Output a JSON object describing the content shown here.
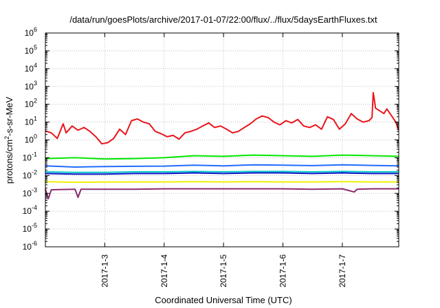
{
  "chart_data": {
    "type": "line",
    "title": "/data/run/goesPlots/archive/2017-01-07/22:00/flux/../flux/5daysEarthFluxes.txt",
    "xlabel": "Coordinated Universal Time (UTC)",
    "ylabel": "protons/cm²-s-sr-MeV",
    "yscale": "log",
    "ylim": [
      1e-06,
      1000000.0
    ],
    "xlim": [
      2.0,
      7.95
    ],
    "x_ticks": [
      {
        "x": 3,
        "label": "2017-1-3"
      },
      {
        "x": 4,
        "label": "2017-1-4"
      },
      {
        "x": 5,
        "label": "2017-1-5"
      },
      {
        "x": 6,
        "label": "2017-1-6"
      },
      {
        "x": 7,
        "label": "2017-1-7"
      }
    ],
    "y_ticks": [
      {
        "exp": -6,
        "label": "10",
        "sup": "-6"
      },
      {
        "exp": -5,
        "label": "10",
        "sup": "-5"
      },
      {
        "exp": -4,
        "label": "10",
        "sup": "-4"
      },
      {
        "exp": -3,
        "label": "10",
        "sup": "-3"
      },
      {
        "exp": -2,
        "label": "10",
        "sup": "-2"
      },
      {
        "exp": -1,
        "label": "10",
        "sup": "-1"
      },
      {
        "exp": 0,
        "label": "10",
        "sup": "0"
      },
      {
        "exp": 1,
        "label": "10",
        "sup": "1"
      },
      {
        "exp": 2,
        "label": "10",
        "sup": "2"
      },
      {
        "exp": 3,
        "label": "10",
        "sup": "3"
      },
      {
        "exp": 4,
        "label": "10",
        "sup": "4"
      },
      {
        "exp": 5,
        "label": "10",
        "sup": "5"
      },
      {
        "exp": 6,
        "label": "10",
        "sup": "6"
      }
    ],
    "grid": true,
    "legend": "none",
    "x_units": "day of January 2017",
    "series": [
      {
        "color": "#e8151b",
        "points": [
          [
            2.0,
            3.2
          ],
          [
            2.1,
            2.5
          ],
          [
            2.2,
            1.2
          ],
          [
            2.3,
            8
          ],
          [
            2.35,
            2.5
          ],
          [
            2.45,
            6
          ],
          [
            2.55,
            3.5
          ],
          [
            2.65,
            5
          ],
          [
            2.75,
            3
          ],
          [
            2.85,
            1.5
          ],
          [
            2.95,
            0.6
          ],
          [
            3.05,
            0.7
          ],
          [
            3.15,
            1.2
          ],
          [
            3.25,
            4
          ],
          [
            3.35,
            2
          ],
          [
            3.45,
            12
          ],
          [
            3.55,
            15
          ],
          [
            3.65,
            10
          ],
          [
            3.75,
            8
          ],
          [
            3.85,
            3
          ],
          [
            3.95,
            2.2
          ],
          [
            4.05,
            1.5
          ],
          [
            4.15,
            1.8
          ],
          [
            4.25,
            1.1
          ],
          [
            4.35,
            2.5
          ],
          [
            4.45,
            3
          ],
          [
            4.55,
            4
          ],
          [
            4.65,
            6
          ],
          [
            4.75,
            9
          ],
          [
            4.85,
            5
          ],
          [
            4.95,
            6
          ],
          [
            5.05,
            4
          ],
          [
            5.15,
            2.5
          ],
          [
            5.25,
            3
          ],
          [
            5.35,
            5
          ],
          [
            5.45,
            8
          ],
          [
            5.55,
            15
          ],
          [
            5.65,
            22
          ],
          [
            5.75,
            18
          ],
          [
            5.85,
            10
          ],
          [
            5.95,
            7
          ],
          [
            6.05,
            12
          ],
          [
            6.15,
            9
          ],
          [
            6.25,
            14
          ],
          [
            6.35,
            6
          ],
          [
            6.45,
            5
          ],
          [
            6.55,
            7
          ],
          [
            6.65,
            4
          ],
          [
            6.75,
            20
          ],
          [
            6.85,
            14
          ],
          [
            6.95,
            4
          ],
          [
            7.05,
            8
          ],
          [
            7.15,
            30
          ],
          [
            7.25,
            15
          ],
          [
            7.35,
            10
          ],
          [
            7.45,
            12
          ],
          [
            7.5,
            18
          ],
          [
            7.52,
            450
          ],
          [
            7.56,
            60
          ],
          [
            7.62,
            45
          ],
          [
            7.7,
            30
          ],
          [
            7.75,
            55
          ],
          [
            7.82,
            25
          ],
          [
            7.9,
            10
          ],
          [
            7.95,
            3.5
          ]
        ]
      },
      {
        "color": "#00e800",
        "points": [
          [
            2.0,
            0.09
          ],
          [
            2.5,
            0.1
          ],
          [
            3.0,
            0.085
          ],
          [
            3.5,
            0.09
          ],
          [
            4.0,
            0.1
          ],
          [
            4.5,
            0.13
          ],
          [
            5.0,
            0.12
          ],
          [
            5.5,
            0.14
          ],
          [
            6.0,
            0.13
          ],
          [
            6.5,
            0.12
          ],
          [
            7.0,
            0.14
          ],
          [
            7.5,
            0.13
          ],
          [
            7.95,
            0.12
          ]
        ]
      },
      {
        "color": "#1f6bff",
        "points": [
          [
            2.0,
            0.035
          ],
          [
            2.5,
            0.03
          ],
          [
            3.0,
            0.032
          ],
          [
            3.5,
            0.033
          ],
          [
            4.0,
            0.034
          ],
          [
            4.5,
            0.038
          ],
          [
            5.0,
            0.035
          ],
          [
            5.5,
            0.04
          ],
          [
            6.0,
            0.038
          ],
          [
            6.5,
            0.036
          ],
          [
            7.0,
            0.04
          ],
          [
            7.5,
            0.037
          ],
          [
            7.95,
            0.035
          ]
        ]
      },
      {
        "color": "#00c8c8",
        "points": [
          [
            2.0,
            0.016
          ],
          [
            2.5,
            0.015
          ],
          [
            3.0,
            0.015
          ],
          [
            3.5,
            0.016
          ],
          [
            4.0,
            0.016
          ],
          [
            4.5,
            0.017
          ],
          [
            5.0,
            0.016
          ],
          [
            5.5,
            0.017
          ],
          [
            6.0,
            0.017
          ],
          [
            6.5,
            0.016
          ],
          [
            7.0,
            0.017
          ],
          [
            7.5,
            0.016
          ],
          [
            7.95,
            0.016
          ]
        ]
      },
      {
        "color": "#1010c8",
        "points": [
          [
            2.0,
            0.013
          ],
          [
            2.5,
            0.012
          ],
          [
            3.0,
            0.012
          ],
          [
            3.5,
            0.013
          ],
          [
            4.0,
            0.013
          ],
          [
            4.5,
            0.014
          ],
          [
            5.0,
            0.013
          ],
          [
            5.5,
            0.014
          ],
          [
            6.0,
            0.014
          ],
          [
            6.5,
            0.013
          ],
          [
            7.0,
            0.014
          ],
          [
            7.5,
            0.013
          ],
          [
            7.95,
            0.013
          ]
        ]
      },
      {
        "color": "#f0f000",
        "points": [
          [
            2.0,
            0.0045
          ],
          [
            2.5,
            0.0042
          ],
          [
            3.0,
            0.0043
          ],
          [
            3.5,
            0.0044
          ],
          [
            4.0,
            0.0044
          ],
          [
            4.5,
            0.0045
          ],
          [
            5.0,
            0.0044
          ],
          [
            5.5,
            0.0045
          ],
          [
            6.0,
            0.0044
          ],
          [
            6.5,
            0.0044
          ],
          [
            7.0,
            0.0045
          ],
          [
            7.5,
            0.0044
          ],
          [
            7.95,
            0.0044
          ]
        ]
      },
      {
        "color": "#8b2a6e",
        "points": [
          [
            2.0,
            0.0018
          ],
          [
            2.05,
            0.0005
          ],
          [
            2.1,
            0.0016
          ],
          [
            2.5,
            0.0017
          ],
          [
            2.55,
            0.0006
          ],
          [
            2.6,
            0.0017
          ],
          [
            3.0,
            0.0017
          ],
          [
            3.5,
            0.0017
          ],
          [
            4.0,
            0.0018
          ],
          [
            4.5,
            0.0018
          ],
          [
            5.0,
            0.0018
          ],
          [
            5.5,
            0.0018
          ],
          [
            6.0,
            0.0018
          ],
          [
            6.5,
            0.0017
          ],
          [
            7.0,
            0.0018
          ],
          [
            7.2,
            0.0012
          ],
          [
            7.25,
            0.0017
          ],
          [
            7.5,
            0.0018
          ],
          [
            7.95,
            0.0018
          ]
        ]
      }
    ]
  }
}
